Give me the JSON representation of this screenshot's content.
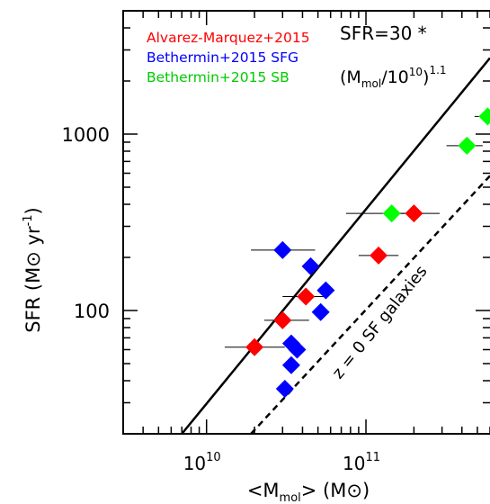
{
  "chart_data": {
    "type": "scatter",
    "x_scale": "log",
    "y_scale": "log",
    "xlim": [
      3000000000.0,
      600000000000.0
    ],
    "ylim": [
      20,
      5000
    ],
    "xlabel": "<M_mol> (M_⊙)",
    "ylabel": "SFR (M_⊙ yr^-1)",
    "x_ticks": [
      {
        "value": 10000000000.0,
        "label_base": "10",
        "label_exp": "10"
      },
      {
        "value": 100000000000.0,
        "label_base": "10",
        "label_exp": "11"
      }
    ],
    "y_ticks": [
      {
        "value": 100,
        "label": "100"
      },
      {
        "value": 1000,
        "label": "1000"
      }
    ],
    "grid": false,
    "legend_position": "top-left",
    "series": [
      {
        "name": "Alvarez-Marquez+2015",
        "color": "#ff0000",
        "points": [
          {
            "x": 20000000000.0,
            "y": 62,
            "xerr": [
              13000000000.0,
              31000000000.0
            ]
          },
          {
            "x": 30000000000.0,
            "y": 88,
            "xerr": [
              23000000000.0,
              44000000000.0
            ]
          },
          {
            "x": 42000000000.0,
            "y": 120,
            "xerr": [
              30000000000.0,
              58000000000.0
            ]
          },
          {
            "x": 120000000000.0,
            "y": 205,
            "xerr": [
              90000000000.0,
              160000000000.0
            ]
          },
          {
            "x": 200000000000.0,
            "y": 355,
            "xerr": [
              140000000000.0,
              290000000000.0
            ]
          }
        ]
      },
      {
        "name": "Bethermin+2015 SFG",
        "color": "#0000ff",
        "points": [
          {
            "x": 30000000000.0,
            "y": 220,
            "xerr": [
              19000000000.0,
              48000000000.0
            ]
          },
          {
            "x": 45000000000.0,
            "y": 178,
            "xerr": null
          },
          {
            "x": 56000000000.0,
            "y": 130,
            "xerr": null
          },
          {
            "x": 52000000000.0,
            "y": 98,
            "xerr": null
          },
          {
            "x": 34000000000.0,
            "y": 65,
            "xerr": null
          },
          {
            "x": 37000000000.0,
            "y": 60,
            "xerr": null
          },
          {
            "x": 34000000000.0,
            "y": 49,
            "xerr": null
          },
          {
            "x": 31000000000.0,
            "y": 36,
            "xerr": null
          }
        ]
      },
      {
        "name": "Bethermin+2015 SB",
        "color": "#00ff00",
        "points": [
          {
            "x": 145000000000.0,
            "y": 355,
            "xerr": [
              75000000000.0,
              230000000000.0
            ]
          },
          {
            "x": 430000000000.0,
            "y": 860,
            "xerr": [
              320000000000.0,
              540000000000.0
            ]
          },
          {
            "x": 580000000000.0,
            "y": 1260,
            "xerr": [
              480000000000.0,
              600000000000.0
            ]
          }
        ]
      }
    ],
    "lines": [
      {
        "label": "SFR=30 * (M_mol/10^10)^1.1",
        "style": "solid",
        "color": "#000000",
        "points": [
          [
            7000000000.0,
            20
          ],
          [
            600000000000.0,
            2700
          ]
        ]
      },
      {
        "label": "z = 0 SF galaxies",
        "style": "dashed",
        "color": "#000000",
        "points": [
          [
            19000000000.0,
            20
          ],
          [
            600000000000.0,
            580
          ]
        ]
      }
    ],
    "annotations": {
      "relation_line1": "SFR=30 *",
      "relation_line2_prefix": "(M",
      "relation_line2_sub": "mol",
      "relation_line2_mid": "/10",
      "relation_line2_sup1": "10",
      "relation_line2_close": ")",
      "relation_line2_sup2": "1.1",
      "z0_label": "z = 0 SF galaxies"
    },
    "axis_text": {
      "ylabel_main": "SFR (M",
      "ylabel_unit": " yr",
      "ylabel_exp": "-1",
      "ylabel_close": ")",
      "xlabel_open": "<M",
      "xlabel_sub": "mol",
      "xlabel_mid": "> (M",
      "xlabel_close": ")"
    }
  }
}
